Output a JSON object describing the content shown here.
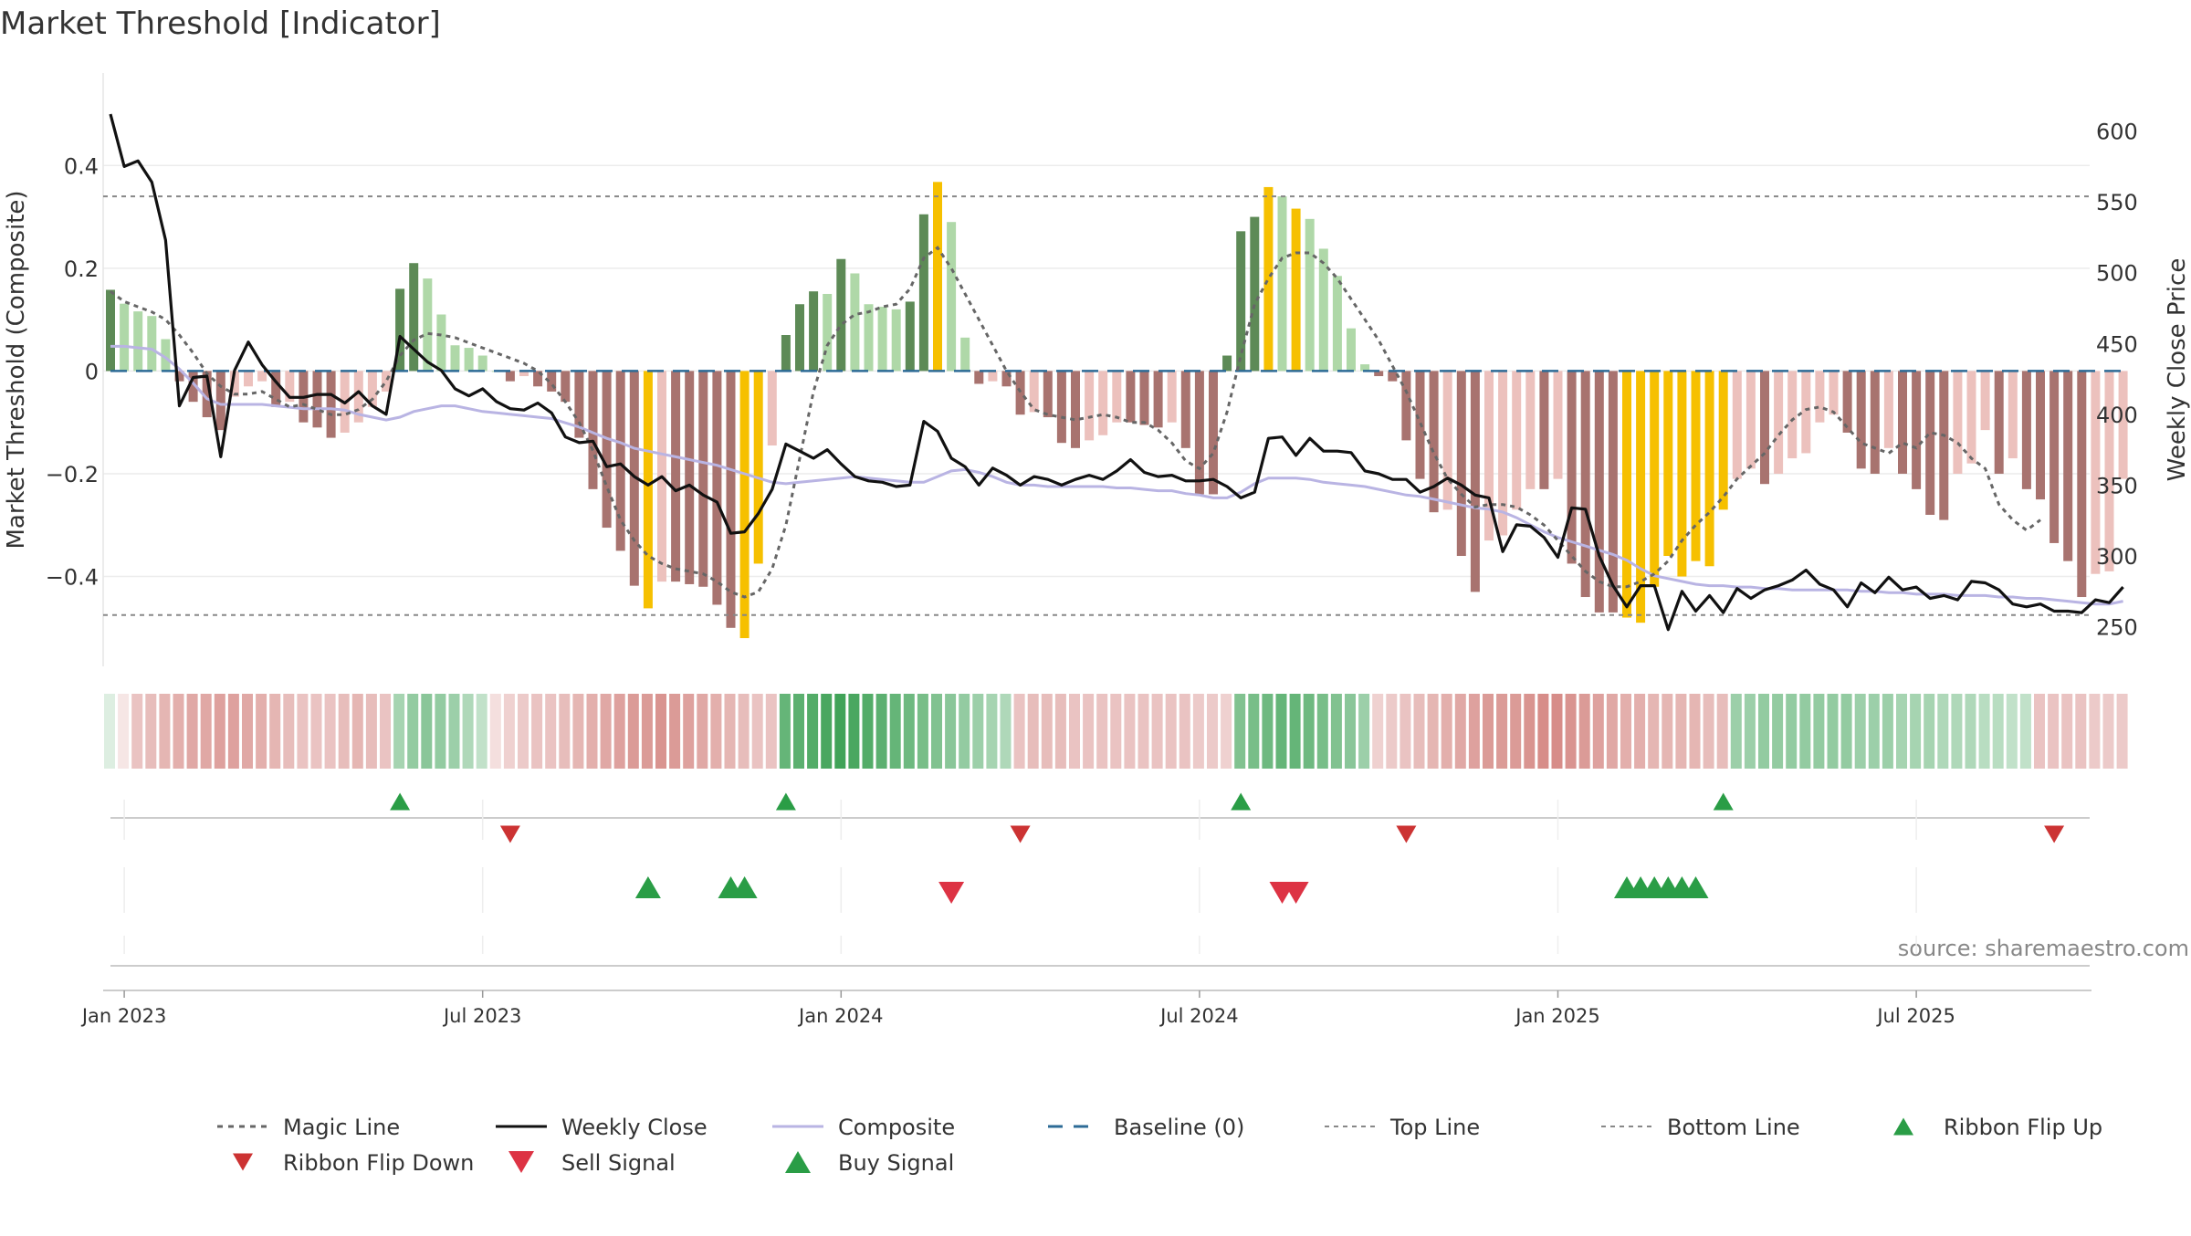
{
  "chart_data": {
    "type": "bar",
    "title": "Market Threshold [Indicator]",
    "ylabel_left": "Market Threshold (Composite)",
    "ylabel_right": "Weekly Close Price",
    "source": "source: sharemaestro.com",
    "y_left_range": [
      -0.575,
      0.58
    ],
    "y_left_ticks": [
      {
        "v": 0.4,
        "label": "0.4"
      },
      {
        "v": 0.2,
        "label": "0.2"
      },
      {
        "v": 0,
        "label": "0"
      },
      {
        "v": -0.2,
        "label": "−0.2"
      },
      {
        "v": -0.4,
        "label": "−0.4"
      }
    ],
    "y_right_range": [
      222,
      641
    ],
    "y_right_ticks": [
      {
        "v": 600,
        "label": "600"
      },
      {
        "v": 550,
        "label": "550"
      },
      {
        "v": 500,
        "label": "500"
      },
      {
        "v": 450,
        "label": "450"
      },
      {
        "v": 400,
        "label": "400"
      },
      {
        "v": 350,
        "label": "350"
      },
      {
        "v": 300,
        "label": "300"
      },
      {
        "v": 250,
        "label": "250"
      }
    ],
    "x_ticks": [
      {
        "w": 1,
        "label": "Jan 2023"
      },
      {
        "w": 27,
        "label": "Jul 2023"
      },
      {
        "w": 53,
        "label": "Jan 2024"
      },
      {
        "w": 79,
        "label": "Jul 2024"
      },
      {
        "w": 105,
        "label": "Jan 2025"
      },
      {
        "w": 131,
        "label": "Jul 2025"
      }
    ],
    "top_line": 0.34,
    "bottom_line": -0.475,
    "colors": {
      "strong_up": "#5d8a56",
      "weak_up": "#afd8a8",
      "strong_down": "#a8736f",
      "weak_down": "#ecc1bd",
      "extreme": "#f6c000",
      "weekly_close": "#111111",
      "composite": "#b9b4e3",
      "magic": "#666666",
      "baseline": "#2d6b96",
      "threshold": "#888888",
      "flip_up": "#2a9d46",
      "flip_down": "#cc3333",
      "buy": "#2a9d46",
      "sell": "#dd3344"
    },
    "composite_bars": [
      0.158,
      0.131,
      0.116,
      0.107,
      0.062,
      -0.02,
      -0.06,
      -0.09,
      -0.115,
      -0.05,
      -0.03,
      -0.02,
      -0.07,
      -0.06,
      -0.1,
      -0.11,
      -0.13,
      -0.12,
      -0.1,
      -0.07,
      -0.04,
      0.16,
      0.21,
      0.18,
      0.11,
      0.05,
      0.045,
      0.03,
      0.0,
      -0.02,
      -0.01,
      -0.03,
      -0.04,
      -0.06,
      -0.13,
      -0.23,
      -0.305,
      -0.35,
      -0.418,
      -0.462,
      -0.41,
      -0.41,
      -0.415,
      -0.42,
      -0.455,
      -0.5,
      -0.52,
      -0.375,
      -0.145,
      0.07,
      0.13,
      0.155,
      0.15,
      0.218,
      0.19,
      0.13,
      0.125,
      0.12,
      0.135,
      0.305,
      0.368,
      0.29,
      0.065,
      -0.025,
      -0.02,
      -0.03,
      -0.085,
      -0.08,
      -0.09,
      -0.14,
      -0.15,
      -0.135,
      -0.125,
      -0.1,
      -0.1,
      -0.105,
      -0.11,
      -0.1,
      -0.15,
      -0.24,
      -0.24,
      0.03,
      0.272,
      0.3,
      0.358,
      0.34,
      0.316,
      0.296,
      0.238,
      0.185,
      0.083,
      0.013,
      -0.01,
      -0.02,
      -0.135,
      -0.21,
      -0.275,
      -0.27,
      -0.36,
      -0.43,
      -0.33,
      -0.32,
      -0.27,
      -0.23,
      -0.23,
      -0.21,
      -0.375,
      -0.44,
      -0.47,
      -0.47,
      -0.48,
      -0.49,
      -0.42,
      -0.36,
      -0.4,
      -0.37,
      -0.38,
      -0.27,
      -0.21,
      -0.19,
      -0.22,
      -0.2,
      -0.17,
      -0.16,
      -0.1,
      -0.085,
      -0.12,
      -0.19,
      -0.2,
      -0.15,
      -0.2,
      -0.23,
      -0.28,
      -0.29,
      -0.2,
      -0.18,
      -0.115,
      -0.2,
      -0.17,
      -0.23,
      -0.25,
      -0.335,
      -0.37,
      -0.44,
      -0.395,
      -0.39,
      -0.21
    ],
    "extreme_weeks": [
      39,
      46,
      47,
      60,
      84,
      86,
      110,
      111,
      112,
      113,
      114,
      115,
      116,
      117
    ],
    "weekly_close": [
      612,
      575,
      579,
      564,
      523,
      406,
      426,
      427,
      370,
      431,
      451,
      435,
      423,
      412,
      412,
      414,
      414,
      408,
      416,
      406,
      400,
      455,
      446,
      437,
      431,
      418,
      413,
      418,
      409,
      404,
      403,
      408,
      401,
      384,
      380,
      381,
      363,
      365,
      356,
      350,
      356,
      346,
      350,
      343,
      338,
      316,
      317,
      330,
      347,
      379,
      374,
      369,
      375,
      365,
      356,
      353,
      352,
      349,
      350,
      395,
      388,
      369,
      363,
      350,
      362,
      357,
      350,
      356,
      354,
      350,
      354,
      357,
      354,
      360,
      368,
      359,
      356,
      357,
      353,
      353,
      354,
      349,
      341,
      345,
      383,
      384,
      371,
      383,
      374,
      374,
      373,
      360,
      358,
      354,
      354,
      345,
      349,
      355,
      350,
      343,
      341,
      303,
      322,
      321,
      313,
      299,
      334,
      333,
      300,
      279,
      264,
      279,
      279,
      248,
      275,
      261,
      272,
      260,
      277,
      270,
      276,
      279,
      283,
      290,
      280,
      276,
      264,
      281,
      274,
      285,
      276,
      278,
      270,
      272,
      269,
      282,
      281,
      276,
      266,
      264,
      266,
      261,
      261,
      260,
      269,
      267,
      278
    ],
    "composite_line": [
      448,
      448,
      447,
      446,
      440,
      432,
      422,
      411,
      407,
      407,
      407,
      407,
      406,
      405,
      404,
      404,
      404,
      403,
      400,
      398,
      396,
      398,
      402,
      404,
      406,
      406,
      404,
      402,
      401,
      400,
      399,
      398,
      397,
      394,
      391,
      387,
      383,
      380,
      376,
      374,
      372,
      370,
      368,
      366,
      364,
      361,
      358,
      355,
      352,
      351,
      352,
      353,
      354,
      355,
      356,
      355,
      354,
      353,
      352,
      352,
      356,
      360,
      361,
      359,
      356,
      352,
      350,
      350,
      349,
      349,
      349,
      349,
      349,
      348,
      348,
      347,
      346,
      346,
      344,
      343,
      341,
      341,
      345,
      351,
      355,
      355,
      355,
      354,
      352,
      351,
      350,
      349,
      347,
      345,
      343,
      342,
      340,
      338,
      336,
      334,
      333,
      331,
      327,
      322,
      317,
      313,
      310,
      307,
      304,
      301,
      297,
      291,
      286,
      284,
      282,
      280,
      279,
      279,
      278,
      278,
      277,
      277,
      276,
      276,
      276,
      276,
      276,
      275,
      275,
      274,
      274,
      273,
      273,
      273,
      272,
      272,
      272,
      271,
      271,
      270,
      270,
      269,
      268,
      267,
      266,
      266,
      268
    ],
    "magic_line": [
      0.155,
      0.135,
      0.125,
      0.115,
      0.1,
      0.07,
      0.035,
      -0.005,
      -0.03,
      -0.045,
      -0.045,
      -0.04,
      -0.055,
      -0.07,
      -0.065,
      -0.075,
      -0.085,
      -0.085,
      -0.075,
      -0.055,
      -0.02,
      0.03,
      0.06,
      0.073,
      0.07,
      0.065,
      0.055,
      0.045,
      0.035,
      0.025,
      0.015,
      0.0,
      -0.025,
      -0.06,
      -0.1,
      -0.155,
      -0.225,
      -0.29,
      -0.33,
      -0.36,
      -0.375,
      -0.385,
      -0.39,
      -0.395,
      -0.41,
      -0.43,
      -0.44,
      -0.43,
      -0.385,
      -0.3,
      -0.17,
      -0.04,
      0.05,
      0.09,
      0.11,
      0.115,
      0.125,
      0.13,
      0.16,
      0.22,
      0.24,
      0.2,
      0.15,
      0.1,
      0.05,
      0.0,
      -0.04,
      -0.075,
      -0.085,
      -0.09,
      -0.095,
      -0.09,
      -0.085,
      -0.09,
      -0.1,
      -0.1,
      -0.115,
      -0.14,
      -0.175,
      -0.19,
      -0.16,
      -0.08,
      0.03,
      0.13,
      0.18,
      0.22,
      0.23,
      0.23,
      0.21,
      0.18,
      0.14,
      0.1,
      0.06,
      0.01,
      -0.04,
      -0.1,
      -0.16,
      -0.21,
      -0.24,
      -0.265,
      -0.26,
      -0.26,
      -0.265,
      -0.28,
      -0.3,
      -0.33,
      -0.36,
      -0.39,
      -0.41,
      -0.42,
      -0.42,
      -0.41,
      -0.395,
      -0.37,
      -0.33,
      -0.3,
      -0.275,
      -0.245,
      -0.21,
      -0.185,
      -0.16,
      -0.125,
      -0.095,
      -0.075,
      -0.07,
      -0.08,
      -0.11,
      -0.14,
      -0.15,
      -0.16,
      -0.14,
      -0.15,
      -0.12,
      -0.125,
      -0.14,
      -0.17,
      -0.19,
      -0.26,
      -0.29,
      -0.31,
      -0.29
    ],
    "ribbon": [
      0.05,
      -0.05,
      -0.3,
      -0.35,
      -0.4,
      -0.45,
      -0.5,
      -0.5,
      -0.55,
      -0.55,
      -0.5,
      -0.45,
      -0.4,
      -0.35,
      -0.3,
      -0.3,
      -0.3,
      -0.35,
      -0.4,
      -0.35,
      -0.3,
      0.35,
      0.45,
      0.5,
      0.45,
      0.4,
      0.3,
      0.2,
      -0.1,
      -0.2,
      -0.25,
      -0.3,
      -0.3,
      -0.35,
      -0.4,
      -0.45,
      -0.5,
      -0.55,
      -0.6,
      -0.6,
      -0.65,
      -0.6,
      -0.55,
      -0.5,
      -0.45,
      -0.4,
      -0.35,
      -0.3,
      -0.3,
      0.7,
      0.75,
      0.8,
      0.85,
      0.9,
      0.85,
      0.8,
      0.75,
      0.7,
      0.65,
      0.6,
      0.55,
      0.5,
      0.45,
      0.4,
      0.35,
      0.3,
      -0.3,
      -0.35,
      -0.35,
      -0.35,
      -0.3,
      -0.3,
      -0.3,
      -0.3,
      -0.3,
      -0.3,
      -0.3,
      -0.3,
      -0.3,
      -0.25,
      -0.25,
      -0.2,
      0.55,
      0.6,
      0.65,
      0.7,
      0.7,
      0.65,
      0.6,
      0.55,
      0.5,
      0.4,
      -0.2,
      -0.25,
      -0.3,
      -0.35,
      -0.4,
      -0.45,
      -0.5,
      -0.55,
      -0.6,
      -0.6,
      -0.6,
      -0.65,
      -0.7,
      -0.7,
      -0.65,
      -0.6,
      -0.55,
      -0.5,
      -0.45,
      -0.45,
      -0.4,
      -0.4,
      -0.4,
      -0.4,
      -0.35,
      -0.35,
      0.4,
      0.4,
      0.45,
      0.45,
      0.45,
      0.45,
      0.45,
      0.45,
      0.45,
      0.4,
      0.4,
      0.4,
      0.35,
      0.35,
      0.35,
      0.3,
      0.3,
      0.3,
      0.25,
      0.25,
      0.2,
      0.2,
      -0.3,
      -0.3,
      -0.3,
      -0.3,
      -0.25,
      -0.25,
      -0.25
    ],
    "ribbon_flip_up_weeks": [
      21,
      49,
      82,
      117
    ],
    "ribbon_flip_down_weeks": [
      29,
      66,
      94,
      141
    ],
    "buy_signal_weeks": [
      39,
      45,
      46,
      110,
      111,
      112,
      113,
      114,
      115
    ],
    "sell_signal_weeks": [
      61,
      85,
      86
    ],
    "legend": [
      {
        "key": "magic",
        "label": "Magic Line"
      },
      {
        "key": "weekly",
        "label": "Weekly Close"
      },
      {
        "key": "composite",
        "label": "Composite"
      },
      {
        "key": "baseline",
        "label": "Baseline (0)"
      },
      {
        "key": "top",
        "label": "Top Line"
      },
      {
        "key": "bottom",
        "label": "Bottom Line"
      },
      {
        "key": "flip_up",
        "label": "Ribbon Flip Up"
      },
      {
        "key": "flip_down",
        "label": "Ribbon Flip Down"
      },
      {
        "key": "sell",
        "label": "Sell Signal"
      },
      {
        "key": "buy",
        "label": "Buy Signal"
      }
    ]
  }
}
